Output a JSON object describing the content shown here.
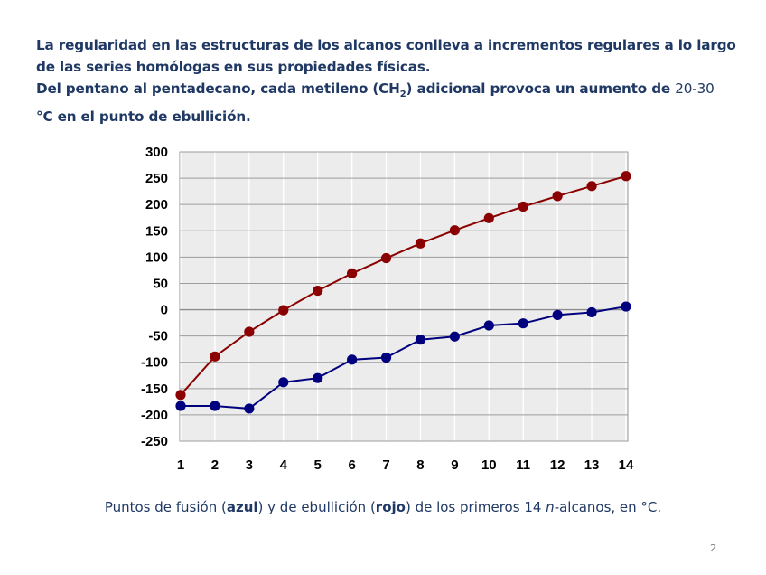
{
  "intro": {
    "line1": "La regularidad en las estructuras de los alcanos conlleva a incrementos regulares a lo largo de las series homólogas en sus propiedades físicas.",
    "line2_a": "Del pentano al pentadecano, cada metileno (CH",
    "line2_sub": "2",
    "line2_b": ") adicional provoca un aumento de ",
    "line2_range": "20-30",
    "line2_c": "°C en el punto de ebullición."
  },
  "caption": {
    "a": "Puntos de fusión (",
    "azul": "azul",
    "b": ") y de ebullición (",
    "rojo": "rojo",
    "c": ") de los primeros 14 ",
    "n": "n",
    "d": "-alcanos, en °C."
  },
  "page_number": "2",
  "chart_data": {
    "type": "line",
    "x": [
      1,
      2,
      3,
      4,
      5,
      6,
      7,
      8,
      9,
      10,
      11,
      12,
      13,
      14
    ],
    "x_ticks": [
      "1",
      "2",
      "3",
      "4",
      "5",
      "6",
      "7",
      "8",
      "9",
      "10",
      "11",
      "12",
      "13",
      "14"
    ],
    "y_ticks": [
      "300",
      "250",
      "200",
      "150",
      "100",
      "50",
      "0",
      "-50",
      "-100",
      "-150",
      "-200",
      "-250"
    ],
    "ylim": [
      -250,
      300
    ],
    "grid": true,
    "series": [
      {
        "color": "#8b0000",
        "values": [
          -162,
          -89,
          -42,
          -1,
          36,
          69,
          98,
          126,
          151,
          174,
          196,
          216,
          235,
          254
        ]
      },
      {
        "color": "#00007f",
        "values": [
          -183,
          -183,
          -188,
          -138,
          -130,
          -95,
          -91,
          -57,
          -51,
          -30,
          -26,
          -10,
          -5,
          6
        ]
      }
    ]
  }
}
